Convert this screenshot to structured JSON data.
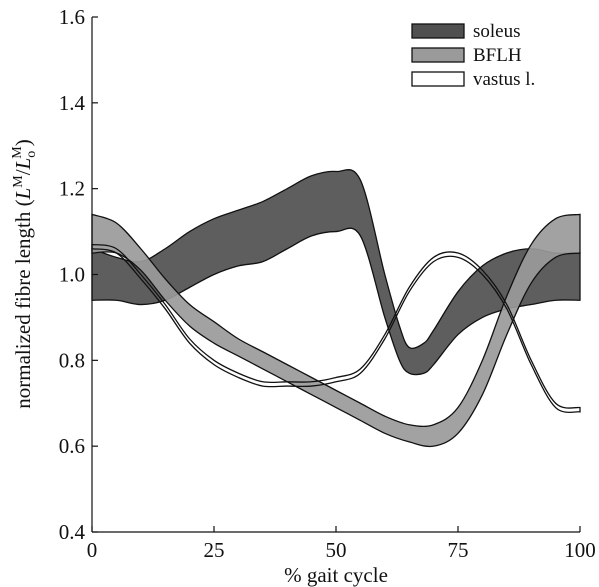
{
  "chart_data": {
    "type": "area",
    "xlabel": "% gait cycle",
    "ylabel_parts": {
      "prefix": "normalized fibre length (",
      "L1": "L",
      "sup1": "M",
      "slash": "/",
      "L2": "L",
      "sub2": "o",
      "sup2": "M",
      "suffix": ")"
    },
    "xlim": [
      0,
      100
    ],
    "ylim": [
      0.4,
      1.6
    ],
    "xticks": [
      "0",
      "25",
      "50",
      "75",
      "100"
    ],
    "yticks": [
      "0.4",
      "0.6",
      "0.8",
      "1.0",
      "1.2",
      "1.4",
      "1.6"
    ],
    "grid": false,
    "legend_position": "top-right",
    "series": [
      {
        "name": "soleus",
        "color": "#505050",
        "x": [
          0,
          5,
          10,
          15,
          20,
          25,
          30,
          35,
          40,
          45,
          50,
          55,
          60,
          63,
          65,
          68,
          70,
          75,
          80,
          85,
          90,
          95,
          100
        ],
        "upper": [
          1.06,
          1.04,
          1.03,
          1.06,
          1.1,
          1.13,
          1.15,
          1.17,
          1.2,
          1.23,
          1.24,
          1.22,
          1.0,
          0.88,
          0.83,
          0.84,
          0.87,
          0.96,
          1.02,
          1.05,
          1.06,
          1.05,
          1.05
        ],
        "lower": [
          0.94,
          0.94,
          0.93,
          0.94,
          0.97,
          1.0,
          1.02,
          1.03,
          1.06,
          1.09,
          1.1,
          1.09,
          0.9,
          0.8,
          0.77,
          0.77,
          0.79,
          0.86,
          0.9,
          0.92,
          0.93,
          0.94,
          0.94
        ]
      },
      {
        "name": "BFLH",
        "color": "#9a9a9a",
        "x": [
          0,
          5,
          10,
          15,
          20,
          25,
          30,
          35,
          40,
          45,
          50,
          55,
          60,
          65,
          70,
          75,
          80,
          85,
          90,
          95,
          100
        ],
        "upper": [
          1.14,
          1.12,
          1.06,
          0.99,
          0.93,
          0.89,
          0.85,
          0.82,
          0.79,
          0.76,
          0.73,
          0.7,
          0.67,
          0.65,
          0.65,
          0.69,
          0.8,
          0.95,
          1.07,
          1.13,
          1.14
        ],
        "lower": [
          1.05,
          1.05,
          1.01,
          0.94,
          0.88,
          0.84,
          0.81,
          0.78,
          0.75,
          0.72,
          0.69,
          0.66,
          0.63,
          0.61,
          0.6,
          0.63,
          0.72,
          0.86,
          0.98,
          1.04,
          1.05
        ]
      },
      {
        "name": "vastus l.",
        "color": "#ffffff",
        "x": [
          0,
          5,
          10,
          15,
          20,
          25,
          30,
          35,
          40,
          45,
          50,
          55,
          60,
          65,
          70,
          75,
          80,
          85,
          90,
          95,
          100
        ],
        "upper": [
          1.07,
          1.06,
          1.0,
          0.93,
          0.85,
          0.8,
          0.77,
          0.75,
          0.75,
          0.75,
          0.76,
          0.78,
          0.86,
          0.97,
          1.04,
          1.05,
          1.01,
          0.93,
          0.8,
          0.7,
          0.69
        ],
        "lower": [
          1.06,
          1.05,
          0.99,
          0.92,
          0.84,
          0.79,
          0.76,
          0.74,
          0.74,
          0.74,
          0.75,
          0.77,
          0.85,
          0.96,
          1.03,
          1.04,
          1.0,
          0.92,
          0.79,
          0.69,
          0.68
        ]
      }
    ]
  }
}
